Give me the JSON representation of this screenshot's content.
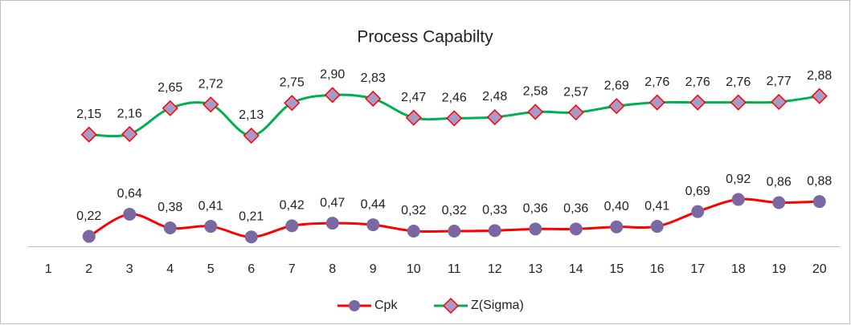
{
  "chart_data": {
    "type": "line",
    "title": "Process Capabilty",
    "categories": [
      1,
      2,
      3,
      4,
      5,
      6,
      7,
      8,
      9,
      10,
      11,
      12,
      13,
      14,
      15,
      16,
      17,
      18,
      19,
      20
    ],
    "ylim": [
      0,
      3.5
    ],
    "legend": "bottom",
    "series": [
      {
        "name": "Cpk",
        "color": "#ff0000",
        "marker": "circle",
        "marker_color": "#7b67a1",
        "values": [
          null,
          0.22,
          0.64,
          0.38,
          0.41,
          0.21,
          0.42,
          0.47,
          0.44,
          0.32,
          0.32,
          0.33,
          0.36,
          0.36,
          0.4,
          0.41,
          0.69,
          0.92,
          0.86,
          0.88
        ],
        "value_labels": [
          null,
          "0,22",
          "0,64",
          "0,38",
          "0,41",
          "0,21",
          "0,42",
          "0,47",
          "0,44",
          "0,32",
          "0,32",
          "0,33",
          "0,36",
          "0,36",
          "0,40",
          "0,41",
          "0,69",
          "0,92",
          "0,86",
          "0,88"
        ]
      },
      {
        "name": "Z(Sigma)",
        "color": "#00b050",
        "marker": "diamond",
        "marker_color": "#a79ac6",
        "values": [
          null,
          2.15,
          2.16,
          2.65,
          2.72,
          2.13,
          2.75,
          2.9,
          2.83,
          2.47,
          2.46,
          2.48,
          2.58,
          2.57,
          2.69,
          2.76,
          2.76,
          2.76,
          2.77,
          2.88
        ],
        "value_labels": [
          null,
          "2,15",
          "2,16",
          "2,65",
          "2,72",
          "2,13",
          "2,75",
          "2,90",
          "2,83",
          "2,47",
          "2,46",
          "2,48",
          "2,58",
          "2,57",
          "2,69",
          "2,76",
          "2,76",
          "2,76",
          "2,77",
          "2,88"
        ]
      }
    ]
  }
}
